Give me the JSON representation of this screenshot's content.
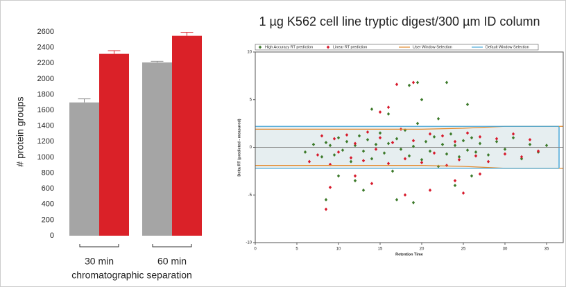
{
  "chart_data": [
    {
      "type": "bar",
      "y_label": "# protein groups",
      "x_label": "chromatographic separation",
      "categories": [
        "30 min",
        "60 min"
      ],
      "series": [
        {
          "color": "#a5a5a5",
          "values": [
            1700,
            2210
          ],
          "errors": [
            45,
            15
          ]
        },
        {
          "color": "#da2128",
          "values": [
            2320,
            2550
          ],
          "errors": [
            40,
            45
          ]
        }
      ],
      "ylim": [
        0,
        2600
      ],
      "yticks": [
        0,
        200,
        400,
        600,
        800,
        1000,
        1200,
        1400,
        1600,
        1800,
        2000,
        2200,
        2400,
        2600
      ],
      "grid": false
    },
    {
      "type": "scatter",
      "title": "1 µg K562 cell line tryptic digest/300 µm ID column",
      "x_label": "Retention Time",
      "y_label": "Delta RT (predicted - measured)",
      "xlim": [
        0,
        37
      ],
      "xticks": [
        0,
        5,
        10,
        15,
        20,
        25,
        30,
        35
      ],
      "ylim": [
        -10,
        10
      ],
      "yticks": [
        -10,
        -5,
        0,
        5,
        10
      ],
      "grid": false,
      "series": [
        {
          "name": "High Accuracy RT prediction",
          "color": "#3c7a2a",
          "x": [
            6,
            7,
            8,
            8.5,
            9,
            9.5,
            10,
            10.5,
            11,
            11.5,
            12,
            12.5,
            13,
            13.5,
            14,
            14.5,
            15,
            15.5,
            16,
            16.5,
            17,
            17.5,
            18,
            18.5,
            19,
            19.5,
            20,
            20.5,
            21,
            21.5,
            22,
            22.5,
            23,
            23.5,
            24,
            24.5,
            25,
            25.5,
            26,
            26.5,
            27,
            28,
            29,
            30,
            31,
            32,
            33,
            34,
            35,
            8.5,
            12,
            14,
            17,
            18.5,
            19.5,
            20,
            23,
            25.5,
            26,
            13,
            16,
            24,
            19,
            10,
            22
          ],
          "values": [
            -0.5,
            0.3,
            -1,
            0.5,
            0.2,
            -0.8,
            1,
            -0.3,
            0.6,
            -1.5,
            0.2,
            1.2,
            -0.4,
            0.8,
            -1.2,
            0.3,
            1.5,
            -0.6,
            0.4,
            -2.5,
            0.9,
            -0.2,
            1.8,
            -0.9,
            0.1,
            2.5,
            -1.3,
            0.6,
            -0.4,
            1.1,
            -2,
            0.3,
            -0.7,
            1.4,
            0.2,
            -1,
            0.7,
            -0.3,
            1,
            -0.5,
            0.4,
            -0.8,
            0.6,
            -0.2,
            1,
            -1.2,
            0.3,
            -0.5,
            0.2,
            -5.5,
            -3.5,
            4,
            -5.5,
            6.5,
            6.8,
            5,
            6.8,
            4.5,
            -3,
            -4.5,
            3.5,
            -4,
            -5.8,
            -3,
            3
          ]
        },
        {
          "name": "Linear RT prediction",
          "color": "#d7192b",
          "x": [
            6.5,
            7.5,
            8,
            9,
            9.5,
            10,
            11,
            11.5,
            12,
            13,
            13.5,
            14.5,
            15,
            16,
            16.5,
            17.5,
            18,
            19,
            20,
            21,
            21.5,
            22.5,
            23,
            24,
            24.5,
            25.5,
            26.5,
            27,
            28,
            29,
            30,
            31,
            32,
            33,
            34,
            17,
            19,
            15,
            16,
            18,
            21,
            24,
            12,
            9,
            25,
            27,
            14,
            8.5
          ],
          "values": [
            -1.5,
            -0.8,
            1.2,
            -1.8,
            0.9,
            -0.5,
            1.3,
            -1.1,
            0.4,
            -1.4,
            1.6,
            -0.2,
            1,
            -1.7,
            0.5,
            1.9,
            -1.2,
            0.7,
            -1.6,
            1.4,
            -0.6,
            1.2,
            -1.9,
            0.6,
            -1.3,
            1.5,
            -0.9,
            1.1,
            -1.5,
            0.9,
            -0.7,
            1.4,
            -1,
            0.8,
            -0.4,
            6.6,
            6.8,
            3.7,
            4.2,
            -5,
            -4.5,
            -3.5,
            -3,
            -4.2,
            -4.8,
            -2.8,
            -3.8,
            -6.5
          ]
        },
        {
          "name": "User Window Selection",
          "color": "#e38a2d",
          "x": [
            0,
            10,
            20,
            25,
            30,
            37
          ],
          "upper": [
            1.9,
            1.9,
            1.9,
            2.0,
            2.2,
            2.2
          ],
          "lower": [
            -1.9,
            -1.9,
            -1.9,
            -2.0,
            -2.2,
            -2.2
          ]
        },
        {
          "name": "Default Window Selection",
          "color": "#4aa8d8",
          "x": [
            0,
            36.5
          ],
          "upper": [
            2.2,
            2.2
          ],
          "lower": [
            -2.2,
            -2.2
          ]
        }
      ]
    }
  ]
}
